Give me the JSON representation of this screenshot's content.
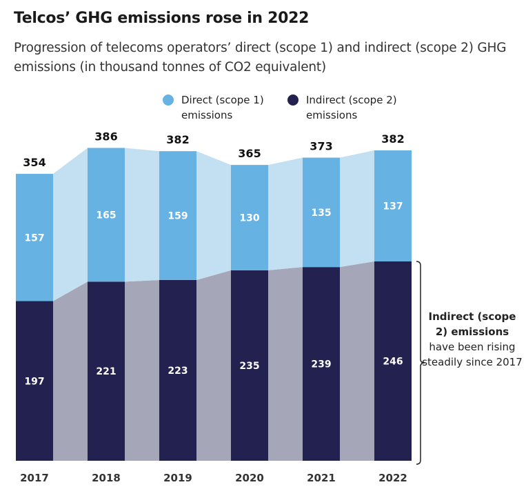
{
  "title": "Telcos’ GHG emissions rose in 2022",
  "subtitle": "Progression of telecoms operators’ direct (scope 1) and indirect (scope 2) GHG emissions (in thousand tonnes of CO2 equivalent)",
  "legend": [
    {
      "line1": "Direct (scope 1)",
      "line2": "emissions",
      "color": "#66b2e2"
    },
    {
      "line1": "Indirect (scope 2)",
      "line2": "emissions",
      "color": "#23214f"
    }
  ],
  "note": {
    "bold": "Indirect (scope 2) emissions",
    "rest": "have been rising steadily since 2017"
  },
  "chart_data": {
    "type": "bar",
    "stacked": true,
    "categories": [
      "2017",
      "2018",
      "2019",
      "2020",
      "2021",
      "2022"
    ],
    "series": [
      {
        "name": "Indirect (scope 2) emissions",
        "values": [
          197,
          221,
          223,
          235,
          239,
          246
        ],
        "color": "#23214f"
      },
      {
        "name": "Direct (scope 1) emissions",
        "values": [
          157,
          165,
          159,
          130,
          135,
          137
        ],
        "color": "#66b2e2"
      }
    ],
    "totals": [
      354,
      386,
      382,
      365,
      373,
      382
    ],
    "ylim": [
      0,
      400
    ],
    "grid": false
  }
}
